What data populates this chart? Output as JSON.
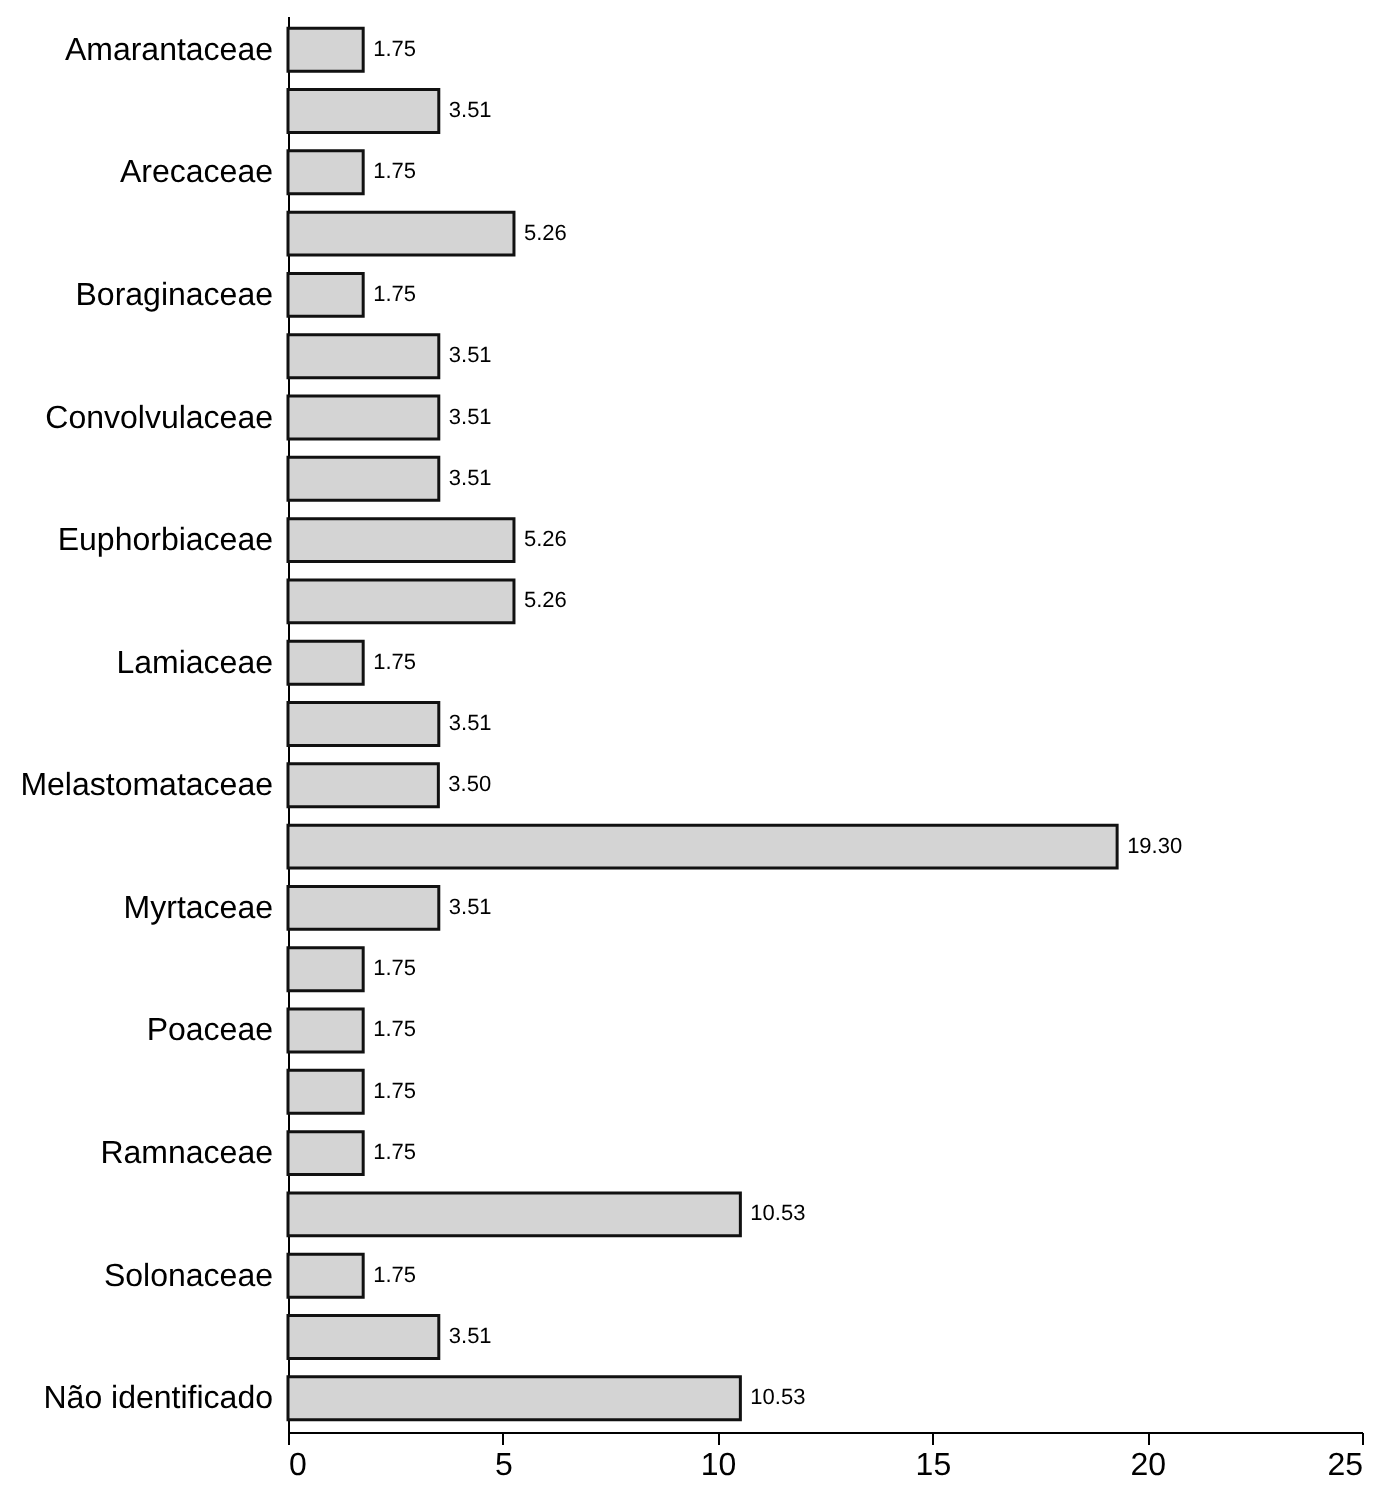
{
  "chart_data": {
    "type": "bar",
    "orientation": "horizontal",
    "categories": [
      "Amarantaceae",
      null,
      "Arecaceae",
      null,
      "Boraginaceae",
      null,
      "Convolvulaceae",
      null,
      "Euphorbiaceae",
      null,
      "Lamiaceae",
      null,
      "Melastomataceae",
      null,
      "Myrtaceae",
      null,
      "Poaceae",
      null,
      "Ramnaceae",
      null,
      "Solonaceae",
      null,
      "Não identificado"
    ],
    "values": [
      1.75,
      3.51,
      1.75,
      5.26,
      1.75,
      3.51,
      3.51,
      3.51,
      5.26,
      5.26,
      1.75,
      3.51,
      3.5,
      19.3,
      3.51,
      1.75,
      1.75,
      1.75,
      1.75,
      10.53,
      1.75,
      3.51,
      10.53
    ],
    "value_labels": [
      "1.75",
      "3.51",
      "1.75",
      "5.26",
      "1.75",
      "3.51",
      "3.51",
      "3.51",
      "5.26",
      "5.26",
      "1.75",
      "3.51",
      "3.50",
      "19.30",
      "3.51",
      "1.75",
      "1.75",
      "1.75",
      "1.75",
      "10.53",
      "1.75",
      "3.51",
      "10.53"
    ],
    "color": "#d4d4d4",
    "xlim": [
      0,
      25
    ],
    "xticks": [
      0,
      5,
      10,
      15,
      20,
      25
    ],
    "grid": false
  }
}
